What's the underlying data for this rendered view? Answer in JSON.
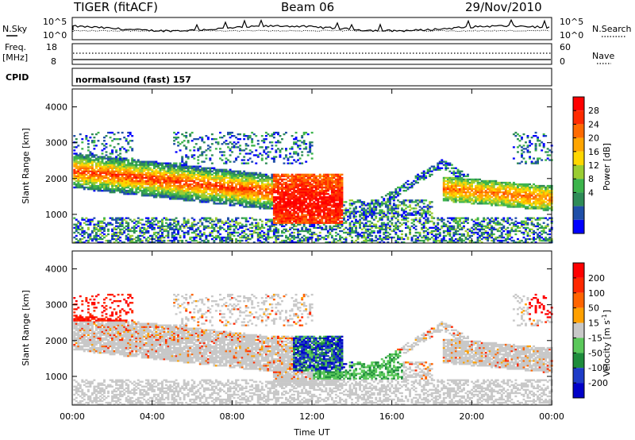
{
  "header": {
    "radar": "TIGER (fitACF)",
    "beam": "Beam 06",
    "date": "29/Nov/2010"
  },
  "aux_panels": {
    "nsky_label": "N.Sky",
    "nsearch_label": "N.Search",
    "nsky_ticks": [
      "10^5",
      "10^0"
    ],
    "freq_label_1": "Freq.",
    "freq_label_2": "[MHz]",
    "freq_ticks": [
      "18",
      "8"
    ],
    "nave_label": "Nave",
    "nave_ticks": [
      "60",
      "0"
    ],
    "cpid_label": "CPID",
    "cpid_value": "normalsound (fast) 157"
  },
  "chart_data": [
    {
      "type": "heatmap",
      "name": "power",
      "ylabel": "Slant Range [km]",
      "xlabel": "",
      "yticks": [
        "4000",
        "3000",
        "2000",
        "1000"
      ],
      "ylim": [
        200,
        4500
      ],
      "colorbar_label": "Power [dB]",
      "colorbar_ticks": [
        "28",
        "24",
        "20",
        "16",
        "12",
        "8",
        "4"
      ],
      "colors": [
        "#0000ff",
        "#1f4fa8",
        "#2e8b57",
        "#3cb44b",
        "#9acd32",
        "#ffd700",
        "#ffa500",
        "#ff6a00",
        "#ff2a00",
        "#ff0000"
      ]
    },
    {
      "type": "heatmap",
      "name": "velocity",
      "ylabel": "Slant Range [km]",
      "xlabel": "Time UT",
      "yticks": [
        "4000",
        "3000",
        "2000",
        "1000"
      ],
      "ylim": [
        200,
        4500
      ],
      "xticks": [
        "00:00",
        "04:00",
        "08:00",
        "12:00",
        "16:00",
        "20:00",
        "00:00"
      ],
      "colorbar_label": "Velocity [m s",
      "colorbar_unit_exp": "-1",
      "colorbar_ticks": [
        "200",
        "100",
        "50",
        "15",
        "-15",
        "-50",
        "-100",
        "-200"
      ],
      "colors": [
        "#0000c8",
        "#1e3cc8",
        "#1e8c3c",
        "#5ac85a",
        "#c8c8c8",
        "#ffa000",
        "#ff6400",
        "#ff2800",
        "#ff0000"
      ]
    }
  ]
}
